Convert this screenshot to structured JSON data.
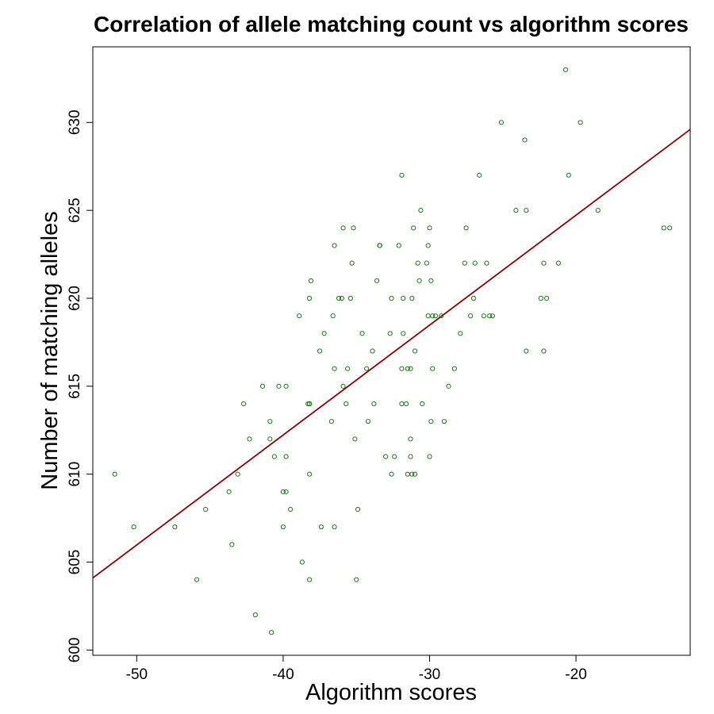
{
  "chart_data": {
    "type": "scatter",
    "title": "Correlation of allele matching count vs algorithm scores",
    "xlabel": "Algorithm scores",
    "ylabel": "Number of matching alleles",
    "xlim": [
      -53,
      -12.2
    ],
    "ylim": [
      599.7,
      634.3
    ],
    "x_ticks": [
      -50,
      -40,
      -30,
      -20
    ],
    "y_ticks": [
      600,
      605,
      610,
      615,
      620,
      625,
      630
    ],
    "grid": false,
    "legend": "none",
    "point_color": "#1a7a1a",
    "line_color": "#8b0000",
    "trend_line": {
      "x": [
        -53,
        -12.2
      ],
      "y": [
        604.1,
        629.6
      ]
    },
    "points": [
      {
        "x": -51.5,
        "y": 610
      },
      {
        "x": -50.2,
        "y": 607
      },
      {
        "x": -47.4,
        "y": 607
      },
      {
        "x": -45.9,
        "y": 604
      },
      {
        "x": -45.3,
        "y": 608
      },
      {
        "x": -43.7,
        "y": 609
      },
      {
        "x": -43.5,
        "y": 606
      },
      {
        "x": -43.1,
        "y": 610
      },
      {
        "x": -42.7,
        "y": 614
      },
      {
        "x": -42.3,
        "y": 612
      },
      {
        "x": -41.9,
        "y": 602
      },
      {
        "x": -41.4,
        "y": 615
      },
      {
        "x": -40.9,
        "y": 613
      },
      {
        "x": -40.9,
        "y": 612
      },
      {
        "x": -40.8,
        "y": 601
      },
      {
        "x": -40.6,
        "y": 611
      },
      {
        "x": -40.3,
        "y": 615
      },
      {
        "x": -40.0,
        "y": 609
      },
      {
        "x": -40.0,
        "y": 607
      },
      {
        "x": -39.8,
        "y": 609
      },
      {
        "x": -39.8,
        "y": 611
      },
      {
        "x": -39.8,
        "y": 615
      },
      {
        "x": -39.5,
        "y": 608
      },
      {
        "x": -38.9,
        "y": 619
      },
      {
        "x": -38.7,
        "y": 605
      },
      {
        "x": -38.3,
        "y": 614
      },
      {
        "x": -38.2,
        "y": 614
      },
      {
        "x": -38.2,
        "y": 614
      },
      {
        "x": -38.2,
        "y": 620
      },
      {
        "x": -38.2,
        "y": 610
      },
      {
        "x": -38.2,
        "y": 604
      },
      {
        "x": -38.1,
        "y": 621
      },
      {
        "x": -37.5,
        "y": 617
      },
      {
        "x": -37.4,
        "y": 607
      },
      {
        "x": -37.2,
        "y": 618
      },
      {
        "x": -36.7,
        "y": 613
      },
      {
        "x": -36.6,
        "y": 619
      },
      {
        "x": -36.5,
        "y": 616
      },
      {
        "x": -36.5,
        "y": 623
      },
      {
        "x": -36.5,
        "y": 607
      },
      {
        "x": -36.2,
        "y": 620
      },
      {
        "x": -36.0,
        "y": 620
      },
      {
        "x": -35.9,
        "y": 615
      },
      {
        "x": -35.9,
        "y": 624
      },
      {
        "x": -35.7,
        "y": 614
      },
      {
        "x": -35.6,
        "y": 616
      },
      {
        "x": -35.4,
        "y": 620
      },
      {
        "x": -35.3,
        "y": 622
      },
      {
        "x": -35.2,
        "y": 624
      },
      {
        "x": -35.1,
        "y": 612
      },
      {
        "x": -35.0,
        "y": 604
      },
      {
        "x": -34.9,
        "y": 608
      },
      {
        "x": -34.6,
        "y": 618
      },
      {
        "x": -34.3,
        "y": 616
      },
      {
        "x": -34.2,
        "y": 613
      },
      {
        "x": -33.9,
        "y": 617
      },
      {
        "x": -33.8,
        "y": 614
      },
      {
        "x": -33.6,
        "y": 621
      },
      {
        "x": -33.4,
        "y": 623
      },
      {
        "x": -33.4,
        "y": 623
      },
      {
        "x": -33.4,
        "y": 623
      },
      {
        "x": -33.0,
        "y": 611
      },
      {
        "x": -32.7,
        "y": 618
      },
      {
        "x": -32.6,
        "y": 610
      },
      {
        "x": -32.6,
        "y": 620
      },
      {
        "x": -32.4,
        "y": 611
      },
      {
        "x": -32.1,
        "y": 623
      },
      {
        "x": -31.9,
        "y": 627
      },
      {
        "x": -31.9,
        "y": 614
      },
      {
        "x": -31.9,
        "y": 616
      },
      {
        "x": -31.8,
        "y": 620
      },
      {
        "x": -31.8,
        "y": 618
      },
      {
        "x": -31.6,
        "y": 614
      },
      {
        "x": -31.5,
        "y": 616
      },
      {
        "x": -31.5,
        "y": 610
      },
      {
        "x": -31.3,
        "y": 616
      },
      {
        "x": -31.3,
        "y": 611
      },
      {
        "x": -31.3,
        "y": 612
      },
      {
        "x": -31.2,
        "y": 610
      },
      {
        "x": -31.2,
        "y": 620
      },
      {
        "x": -31.1,
        "y": 624
      },
      {
        "x": -31.0,
        "y": 610
      },
      {
        "x": -31.0,
        "y": 617
      },
      {
        "x": -30.8,
        "y": 622
      },
      {
        "x": -30.7,
        "y": 621
      },
      {
        "x": -30.6,
        "y": 625
      },
      {
        "x": -30.5,
        "y": 614
      },
      {
        "x": -30.2,
        "y": 622
      },
      {
        "x": -30.1,
        "y": 623
      },
      {
        "x": -30.1,
        "y": 619
      },
      {
        "x": -30.0,
        "y": 624
      },
      {
        "x": -30.0,
        "y": 611
      },
      {
        "x": -29.9,
        "y": 621
      },
      {
        "x": -29.9,
        "y": 613
      },
      {
        "x": -29.8,
        "y": 619
      },
      {
        "x": -29.8,
        "y": 616
      },
      {
        "x": -29.6,
        "y": 619
      },
      {
        "x": -29.2,
        "y": 619
      },
      {
        "x": -29.0,
        "y": 613
      },
      {
        "x": -28.7,
        "y": 615
      },
      {
        "x": -28.3,
        "y": 616
      },
      {
        "x": -27.9,
        "y": 618
      },
      {
        "x": -27.6,
        "y": 622
      },
      {
        "x": -27.5,
        "y": 624
      },
      {
        "x": -27.2,
        "y": 619
      },
      {
        "x": -27.0,
        "y": 620
      },
      {
        "x": -26.9,
        "y": 622
      },
      {
        "x": -26.6,
        "y": 627
      },
      {
        "x": -26.3,
        "y": 619
      },
      {
        "x": -26.1,
        "y": 622
      },
      {
        "x": -25.9,
        "y": 619
      },
      {
        "x": -25.7,
        "y": 619
      },
      {
        "x": -25.1,
        "y": 630
      },
      {
        "x": -24.1,
        "y": 625
      },
      {
        "x": -23.5,
        "y": 629
      },
      {
        "x": -23.4,
        "y": 625
      },
      {
        "x": -23.4,
        "y": 617
      },
      {
        "x": -22.4,
        "y": 620
      },
      {
        "x": -22.2,
        "y": 622
      },
      {
        "x": -22.2,
        "y": 617
      },
      {
        "x": -22.0,
        "y": 620
      },
      {
        "x": -21.2,
        "y": 622
      },
      {
        "x": -20.7,
        "y": 633
      },
      {
        "x": -20.5,
        "y": 627
      },
      {
        "x": -19.7,
        "y": 630
      },
      {
        "x": -18.5,
        "y": 625
      },
      {
        "x": -14.0,
        "y": 624
      },
      {
        "x": -13.6,
        "y": 624
      }
    ]
  }
}
